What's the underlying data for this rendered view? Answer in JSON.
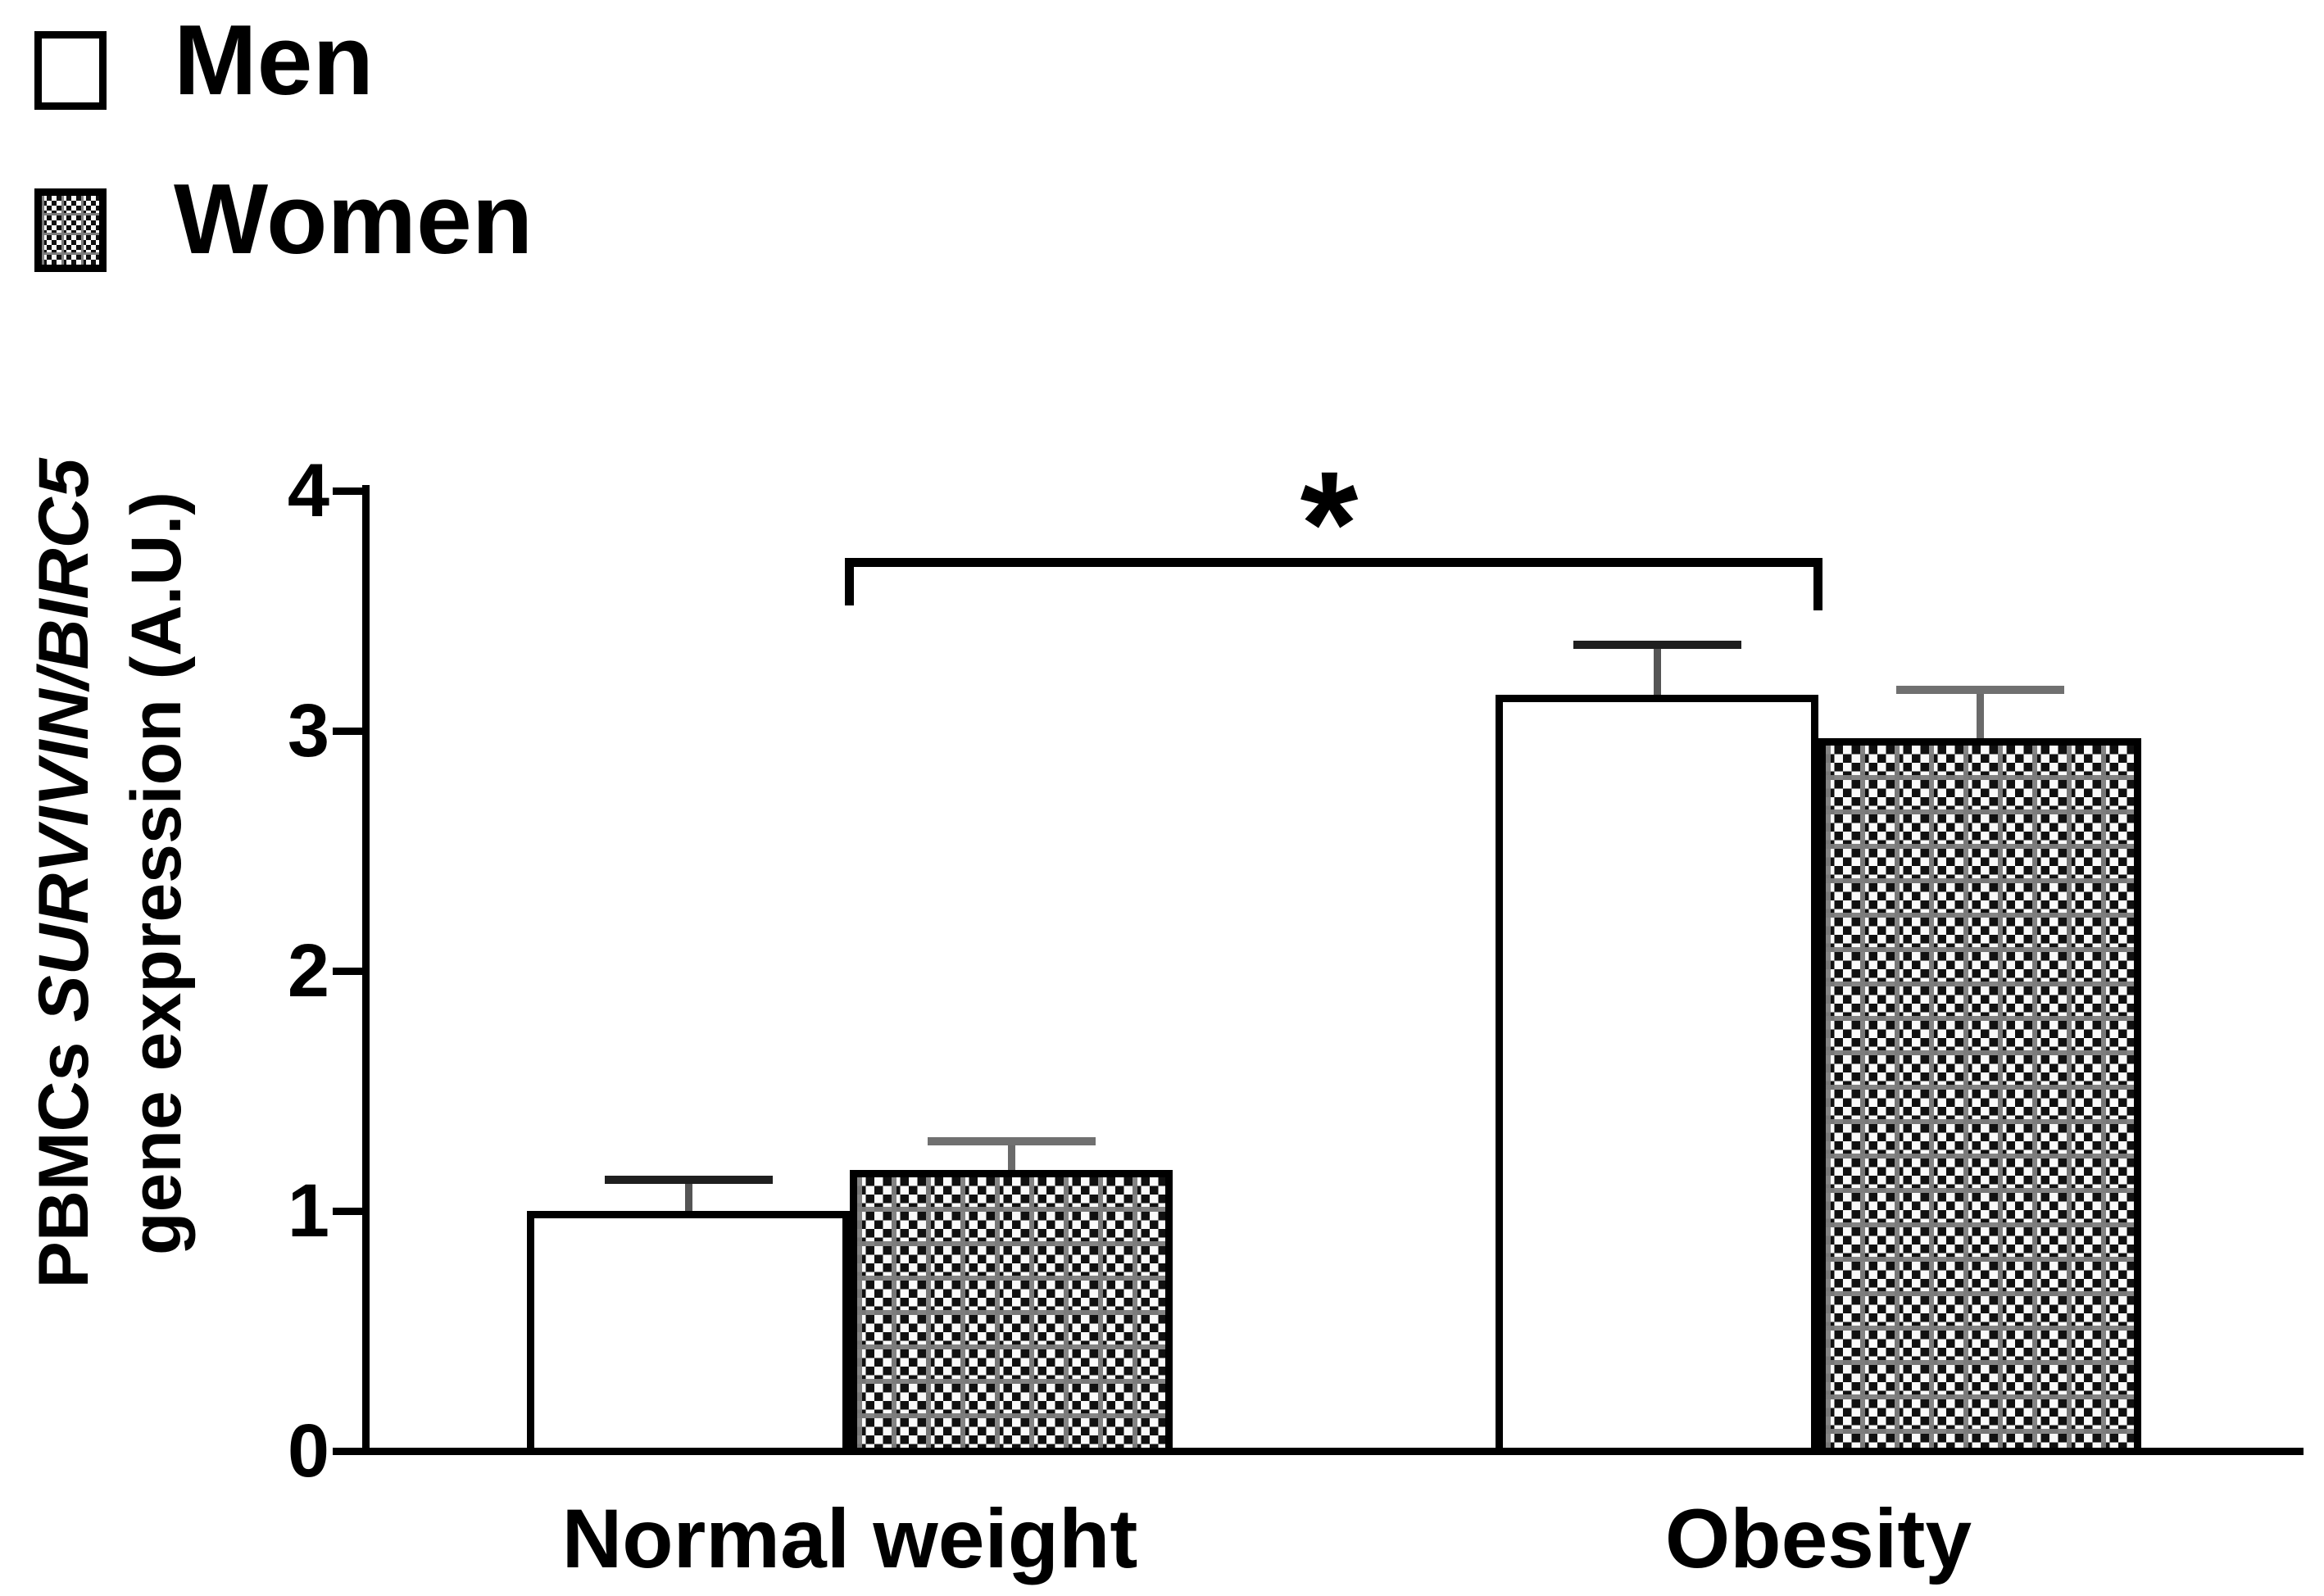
{
  "legend": {
    "items": [
      {
        "label": "Men",
        "pattern": "plain"
      },
      {
        "label": "Women",
        "pattern": "checkered"
      }
    ]
  },
  "y_axis": {
    "label_prefix": "PBMCs ",
    "label_italic": "SURVIVIN/BIRC5",
    "label_line2": "gene expression (A.U.)"
  },
  "significance_symbol": "*",
  "colors": {
    "axis": "#000000",
    "bar_border": "#000000",
    "men_error_cap": "#1f1f1f",
    "men_error_stem": "#555555",
    "women_error_cap": "#707070",
    "women_error_stem": "#6a6a6a"
  },
  "chart_data": {
    "type": "bar",
    "title": "",
    "categories": [
      "Normal weight",
      "Obesity"
    ],
    "series": [
      {
        "name": "Men",
        "pattern": "plain",
        "values": [
          1.0,
          3.15
        ],
        "errors_plus": [
          0.13,
          0.21
        ]
      },
      {
        "name": "Women",
        "pattern": "checkered",
        "values": [
          1.17,
          2.97
        ],
        "errors_plus": [
          0.12,
          0.2
        ]
      }
    ],
    "ylabel": "PBMCs SURVIVIN/BIRC5 gene expression (A.U.)",
    "xlabel": "",
    "ylim": [
      0,
      4
    ],
    "yticks": [
      4,
      3,
      2,
      1,
      0
    ],
    "grid": false,
    "legend_position": "top-left",
    "significance": {
      "symbol": "*",
      "between_categories": [
        "Normal weight",
        "Obesity"
      ],
      "bracket_y": 3.72
    }
  }
}
